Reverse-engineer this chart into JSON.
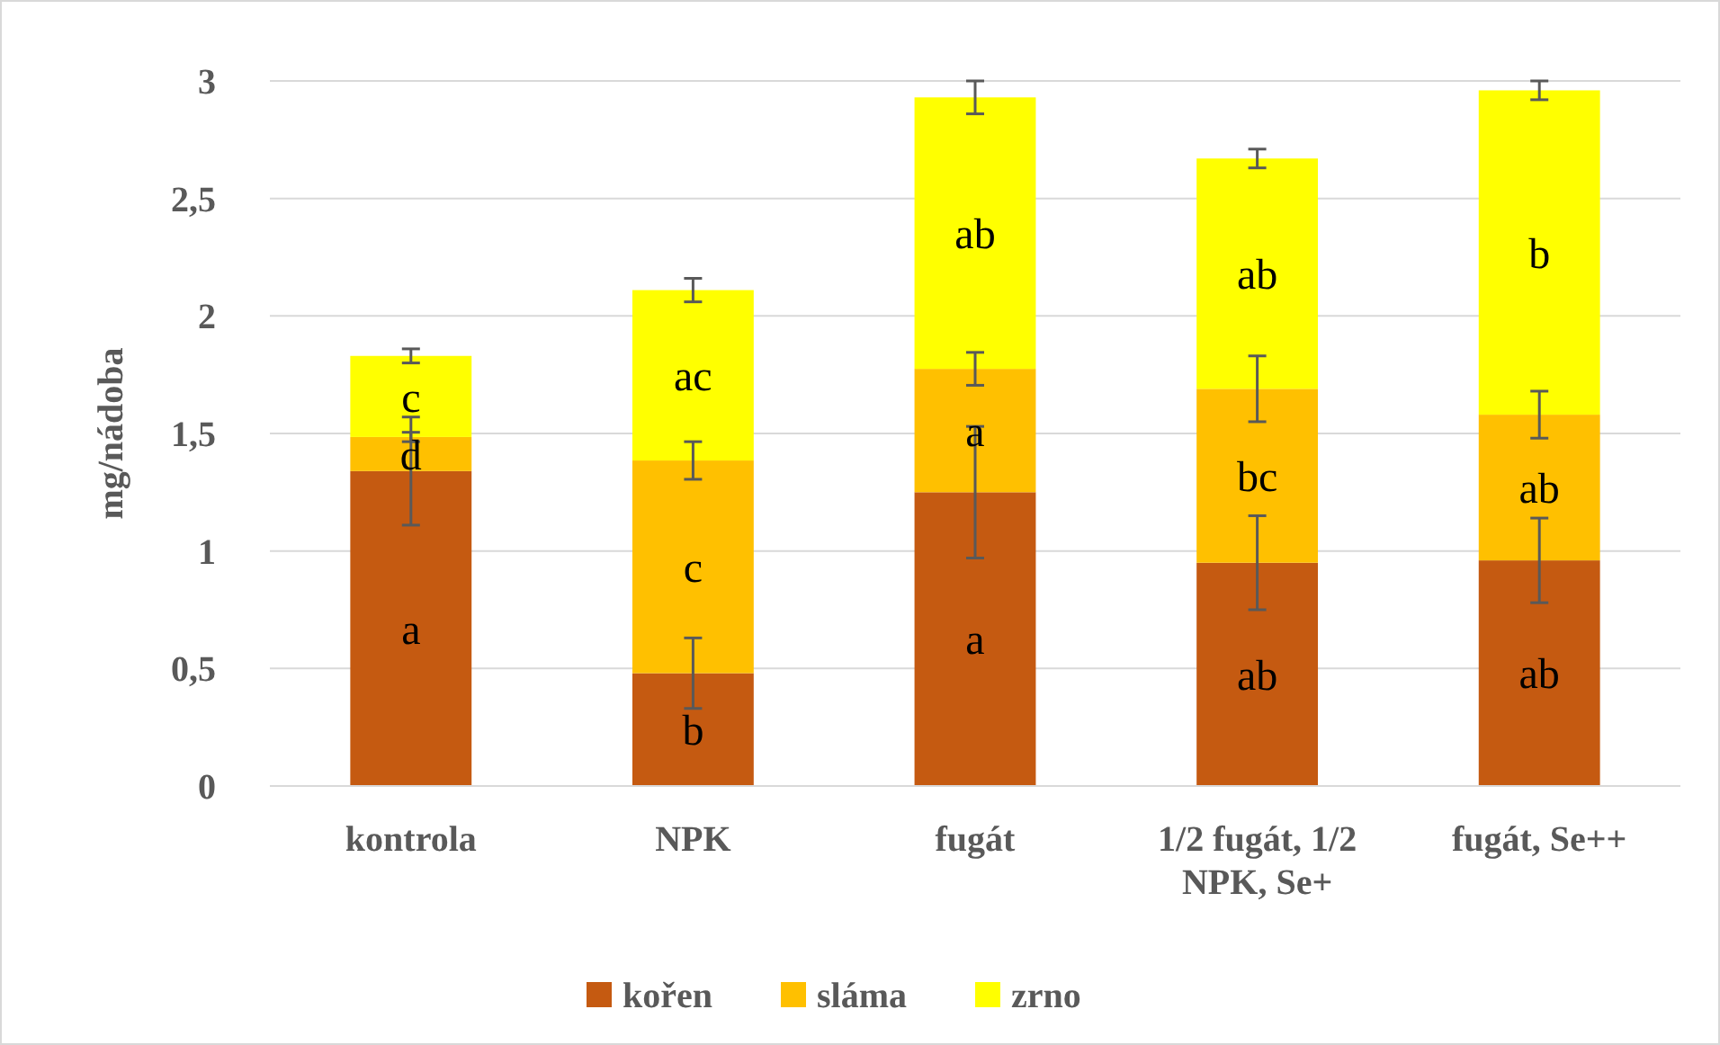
{
  "chart_data": {
    "type": "bar",
    "stacked": true,
    "ylabel": "mg/nádoba",
    "categories": [
      "kontrola",
      "NPK",
      "fugát",
      "1/2 fugát, 1/2 NPK, Se+",
      "fugát, Se++"
    ],
    "series": [
      {
        "name": "kořen",
        "color": "#c55a11",
        "values": [
          1.34,
          0.48,
          1.25,
          0.95,
          0.96
        ],
        "errors": [
          0.23,
          0.15,
          0.28,
          0.2,
          0.18
        ],
        "value_labels": [
          "a",
          "b",
          "a",
          "ab",
          "ab"
        ]
      },
      {
        "name": "sláma",
        "color": "#ffc000",
        "values": [
          0.145,
          0.905,
          0.525,
          0.74,
          0.62
        ],
        "errors": [
          0.02,
          0.08,
          0.07,
          0.14,
          0.1
        ],
        "value_labels": [
          "d",
          "c",
          "a",
          "bc",
          "ab"
        ]
      },
      {
        "name": "zrno",
        "color": "#ffff00",
        "values": [
          0.345,
          0.725,
          1.155,
          0.98,
          1.38
        ],
        "errors": [
          0.03,
          0.05,
          0.07,
          0.04,
          0.04
        ],
        "value_labels": [
          "c",
          "ac",
          "ab",
          "ab",
          "b"
        ]
      }
    ],
    "ylim": [
      0,
      3
    ],
    "yticks": [
      0,
      {
        "value": 0.5,
        "label": "0,5"
      },
      1,
      {
        "value": 1.5,
        "label": "1,5"
      },
      2,
      {
        "value": 2.5,
        "label": "2,5"
      },
      3
    ],
    "grid": "y",
    "legend": "bottom"
  }
}
